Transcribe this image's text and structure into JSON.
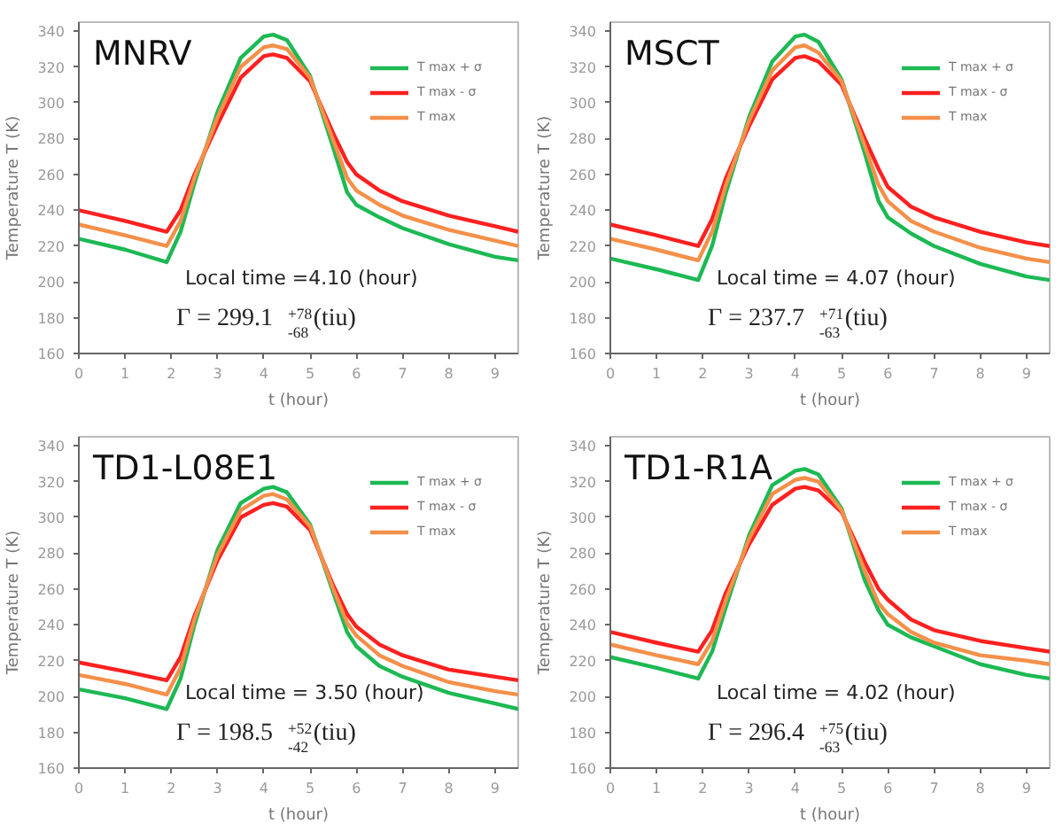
{
  "chart_data": [
    {
      "type": "line",
      "title": "MNRV",
      "xlabel": "t (hour)",
      "ylabel": "Temperature T (K)",
      "legend": "top right",
      "xlim": [
        0,
        9.5
      ],
      "ylim": [
        160,
        345
      ],
      "xticks": [
        0,
        1,
        2,
        3,
        4,
        5,
        6,
        7,
        8,
        9
      ],
      "yticks": [
        160,
        180,
        200,
        220,
        240,
        260,
        280,
        300,
        320,
        340
      ],
      "annotations": [
        "Local time =4.10  (hour)",
        "Γ = 299.1$^{+78}$$_{-68}$ (tiu)"
      ],
      "x": [
        0,
        1,
        1.9,
        2.2,
        2.5,
        3,
        3.5,
        4,
        4.2,
        4.5,
        5,
        5.5,
        5.8,
        6,
        6.5,
        7,
        8,
        9,
        9.5
      ],
      "series": [
        {
          "name": "T max + σ",
          "color": "#1db954",
          "values": [
            224,
            218,
            211,
            228,
            255,
            295,
            325,
            337,
            338,
            335,
            315,
            275,
            250,
            243,
            236,
            230,
            221,
            214,
            212
          ]
        },
        {
          "name": "T max - σ",
          "color": "#ff2020",
          "values": [
            240,
            234,
            228,
            240,
            260,
            288,
            314,
            326,
            327,
            325,
            312,
            283,
            267,
            260,
            251,
            245,
            237,
            231,
            228
          ]
        },
        {
          "name": "T max",
          "color": "#f4904a",
          "values": [
            232,
            226,
            220,
            234,
            258,
            292,
            320,
            331,
            332,
            330,
            314,
            279,
            258,
            251,
            243,
            237,
            229,
            223,
            220
          ]
        }
      ]
    },
    {
      "type": "line",
      "title": "MSCT",
      "xlabel": "t (hour)",
      "ylabel": "Temperature T (K)",
      "legend": "top right",
      "xlim": [
        0,
        9.5
      ],
      "ylim": [
        160,
        345
      ],
      "xticks": [
        0,
        1,
        2,
        3,
        4,
        5,
        6,
        7,
        8,
        9
      ],
      "yticks": [
        160,
        180,
        200,
        220,
        240,
        260,
        280,
        300,
        320,
        340
      ],
      "annotations": [
        "Local time = 4.07 (hour)",
        "Γ = 237.7$^{+71}$$_{-63}$ (tiu)"
      ],
      "x": [
        0,
        1,
        1.9,
        2.2,
        2.5,
        3,
        3.5,
        4,
        4.2,
        4.5,
        5,
        5.5,
        5.8,
        6,
        6.5,
        7,
        8,
        9,
        9.5
      ],
      "series": [
        {
          "name": "T max + σ",
          "color": "#1db954",
          "values": [
            213,
            207,
            201,
            220,
            250,
            292,
            323,
            337,
            338,
            334,
            313,
            272,
            245,
            236,
            227,
            220,
            210,
            203,
            201
          ]
        },
        {
          "name": "T max - σ",
          "color": "#ff2020",
          "values": [
            232,
            226,
            220,
            235,
            258,
            287,
            313,
            325,
            326,
            323,
            310,
            280,
            263,
            253,
            242,
            236,
            228,
            222,
            220
          ]
        },
        {
          "name": "T max",
          "color": "#f4904a",
          "values": [
            224,
            218,
            212,
            228,
            254,
            290,
            318,
            331,
            332,
            328,
            312,
            276,
            254,
            245,
            234,
            228,
            219,
            213,
            211
          ]
        }
      ]
    },
    {
      "type": "line",
      "title": "TD1-L08E1",
      "xlabel": "t (hour)",
      "ylabel": "Temperature T (K)",
      "legend": "top right",
      "xlim": [
        0,
        9.5
      ],
      "ylim": [
        160,
        345
      ],
      "xticks": [
        0,
        1,
        2,
        3,
        4,
        5,
        6,
        7,
        8,
        9
      ],
      "yticks": [
        160,
        180,
        200,
        220,
        240,
        260,
        280,
        300,
        320,
        340
      ],
      "annotations": [
        "Local time = 3.50 (hour)",
        "Γ = 198.5$^{+52}$$_{-42}$ (tiu)"
      ],
      "x": [
        0,
        1,
        1.9,
        2.2,
        2.5,
        3,
        3.5,
        4,
        4.2,
        4.5,
        5,
        5.5,
        5.8,
        6,
        6.5,
        7,
        8,
        9,
        9.5
      ],
      "series": [
        {
          "name": "T max + σ",
          "color": "#1db954",
          "values": [
            204,
            199,
            193,
            210,
            240,
            282,
            308,
            316,
            317,
            314,
            296,
            258,
            236,
            228,
            217,
            211,
            202,
            196,
            193
          ]
        },
        {
          "name": "T max - σ",
          "color": "#ff2020",
          "values": [
            219,
            214,
            209,
            222,
            245,
            276,
            300,
            307,
            308,
            306,
            293,
            262,
            246,
            239,
            229,
            223,
            215,
            211,
            209
          ]
        },
        {
          "name": "T max",
          "color": "#f4904a",
          "values": [
            212,
            207,
            201,
            216,
            243,
            279,
            304,
            312,
            313,
            310,
            295,
            260,
            241,
            234,
            223,
            217,
            208,
            203,
            201
          ]
        }
      ]
    },
    {
      "type": "line",
      "title": "TD1-R1A",
      "xlabel": "t (hour)",
      "ylabel": "Temperature T (K)",
      "legend": "top right",
      "xlim": [
        0,
        9.5
      ],
      "ylim": [
        160,
        345
      ],
      "xticks": [
        0,
        1,
        2,
        3,
        4,
        5,
        6,
        7,
        8,
        9
      ],
      "yticks": [
        160,
        180,
        200,
        220,
        240,
        260,
        280,
        300,
        320,
        340
      ],
      "annotations": [
        "Local time = 4.02 (hour)",
        "Γ = 296.4$^{+75}$$_{-63}$ (tiu)"
      ],
      "x": [
        0,
        1,
        1.9,
        2.2,
        2.5,
        3,
        3.5,
        4,
        4.2,
        4.5,
        5,
        5.5,
        5.8,
        6,
        6.5,
        7,
        8,
        9,
        9.5
      ],
      "series": [
        {
          "name": "T max + σ",
          "color": "#1db954",
          "values": [
            222,
            216,
            210,
            225,
            250,
            290,
            318,
            326,
            327,
            324,
            305,
            265,
            248,
            240,
            233,
            228,
            218,
            212,
            210
          ]
        },
        {
          "name": "T max - σ",
          "color": "#ff2020",
          "values": [
            236,
            230,
            225,
            237,
            258,
            285,
            307,
            316,
            317,
            315,
            303,
            275,
            260,
            254,
            243,
            237,
            231,
            227,
            225
          ]
        },
        {
          "name": "T max",
          "color": "#f4904a",
          "values": [
            229,
            223,
            218,
            231,
            254,
            288,
            313,
            321,
            322,
            320,
            304,
            270,
            252,
            246,
            236,
            230,
            223,
            220,
            218
          ]
        }
      ]
    }
  ]
}
